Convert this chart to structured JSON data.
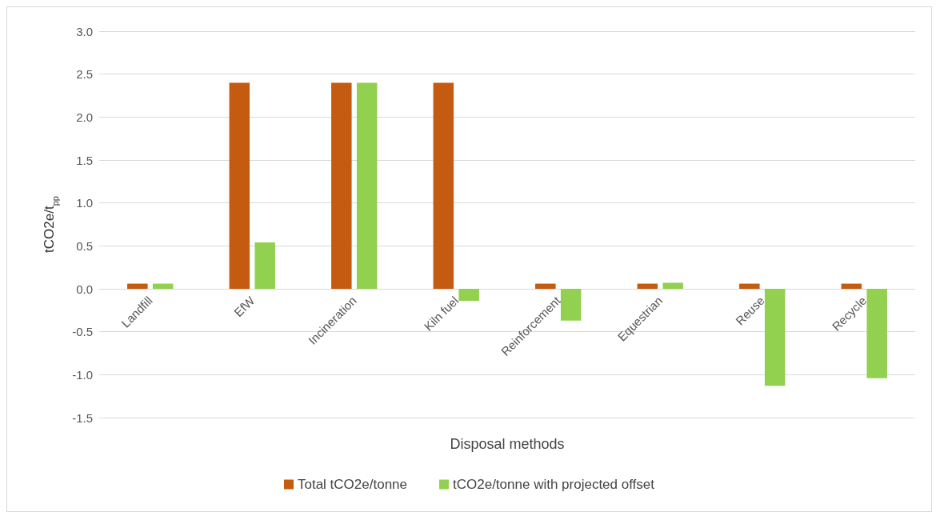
{
  "chart_data": {
    "type": "bar",
    "xlabel": "Disposal methods",
    "ylabel": "tCO2e/t$_{pp}$",
    "categories": [
      "Landfill",
      "EfW",
      "Incineration",
      "Kiln fuel",
      "Reinforcement",
      "Equestrian",
      "Reuse",
      "Recycle"
    ],
    "series": [
      {
        "name": "Total tCO2e/tonne",
        "color": "#c55a11",
        "values": [
          0.06,
          2.4,
          2.4,
          2.4,
          0.06,
          0.06,
          0.06,
          0.06
        ]
      },
      {
        "name": "tCO2e/tonne with projected offset",
        "color": "#92d050",
        "values": [
          0.06,
          0.54,
          2.4,
          -0.14,
          -0.37,
          0.07,
          -1.13,
          -1.04
        ]
      }
    ],
    "ylim": [
      -1.5,
      3
    ],
    "yticks": [
      {
        "value": -1.5,
        "label": "-1.5"
      },
      {
        "value": -1,
        "label": "-1.0"
      },
      {
        "value": -0.5,
        "label": "-0.5"
      },
      {
        "value": 0,
        "label": "0.0"
      },
      {
        "value": 0.5,
        "label": "0.5"
      },
      {
        "value": 1,
        "label": "1.0"
      },
      {
        "value": 1.5,
        "label": "1.5"
      },
      {
        "value": 2,
        "label": "2.0"
      },
      {
        "value": 2.5,
        "label": "2.5"
      },
      {
        "value": 3,
        "label": "3.0"
      }
    ],
    "grid": "y",
    "legend": "bottom"
  }
}
